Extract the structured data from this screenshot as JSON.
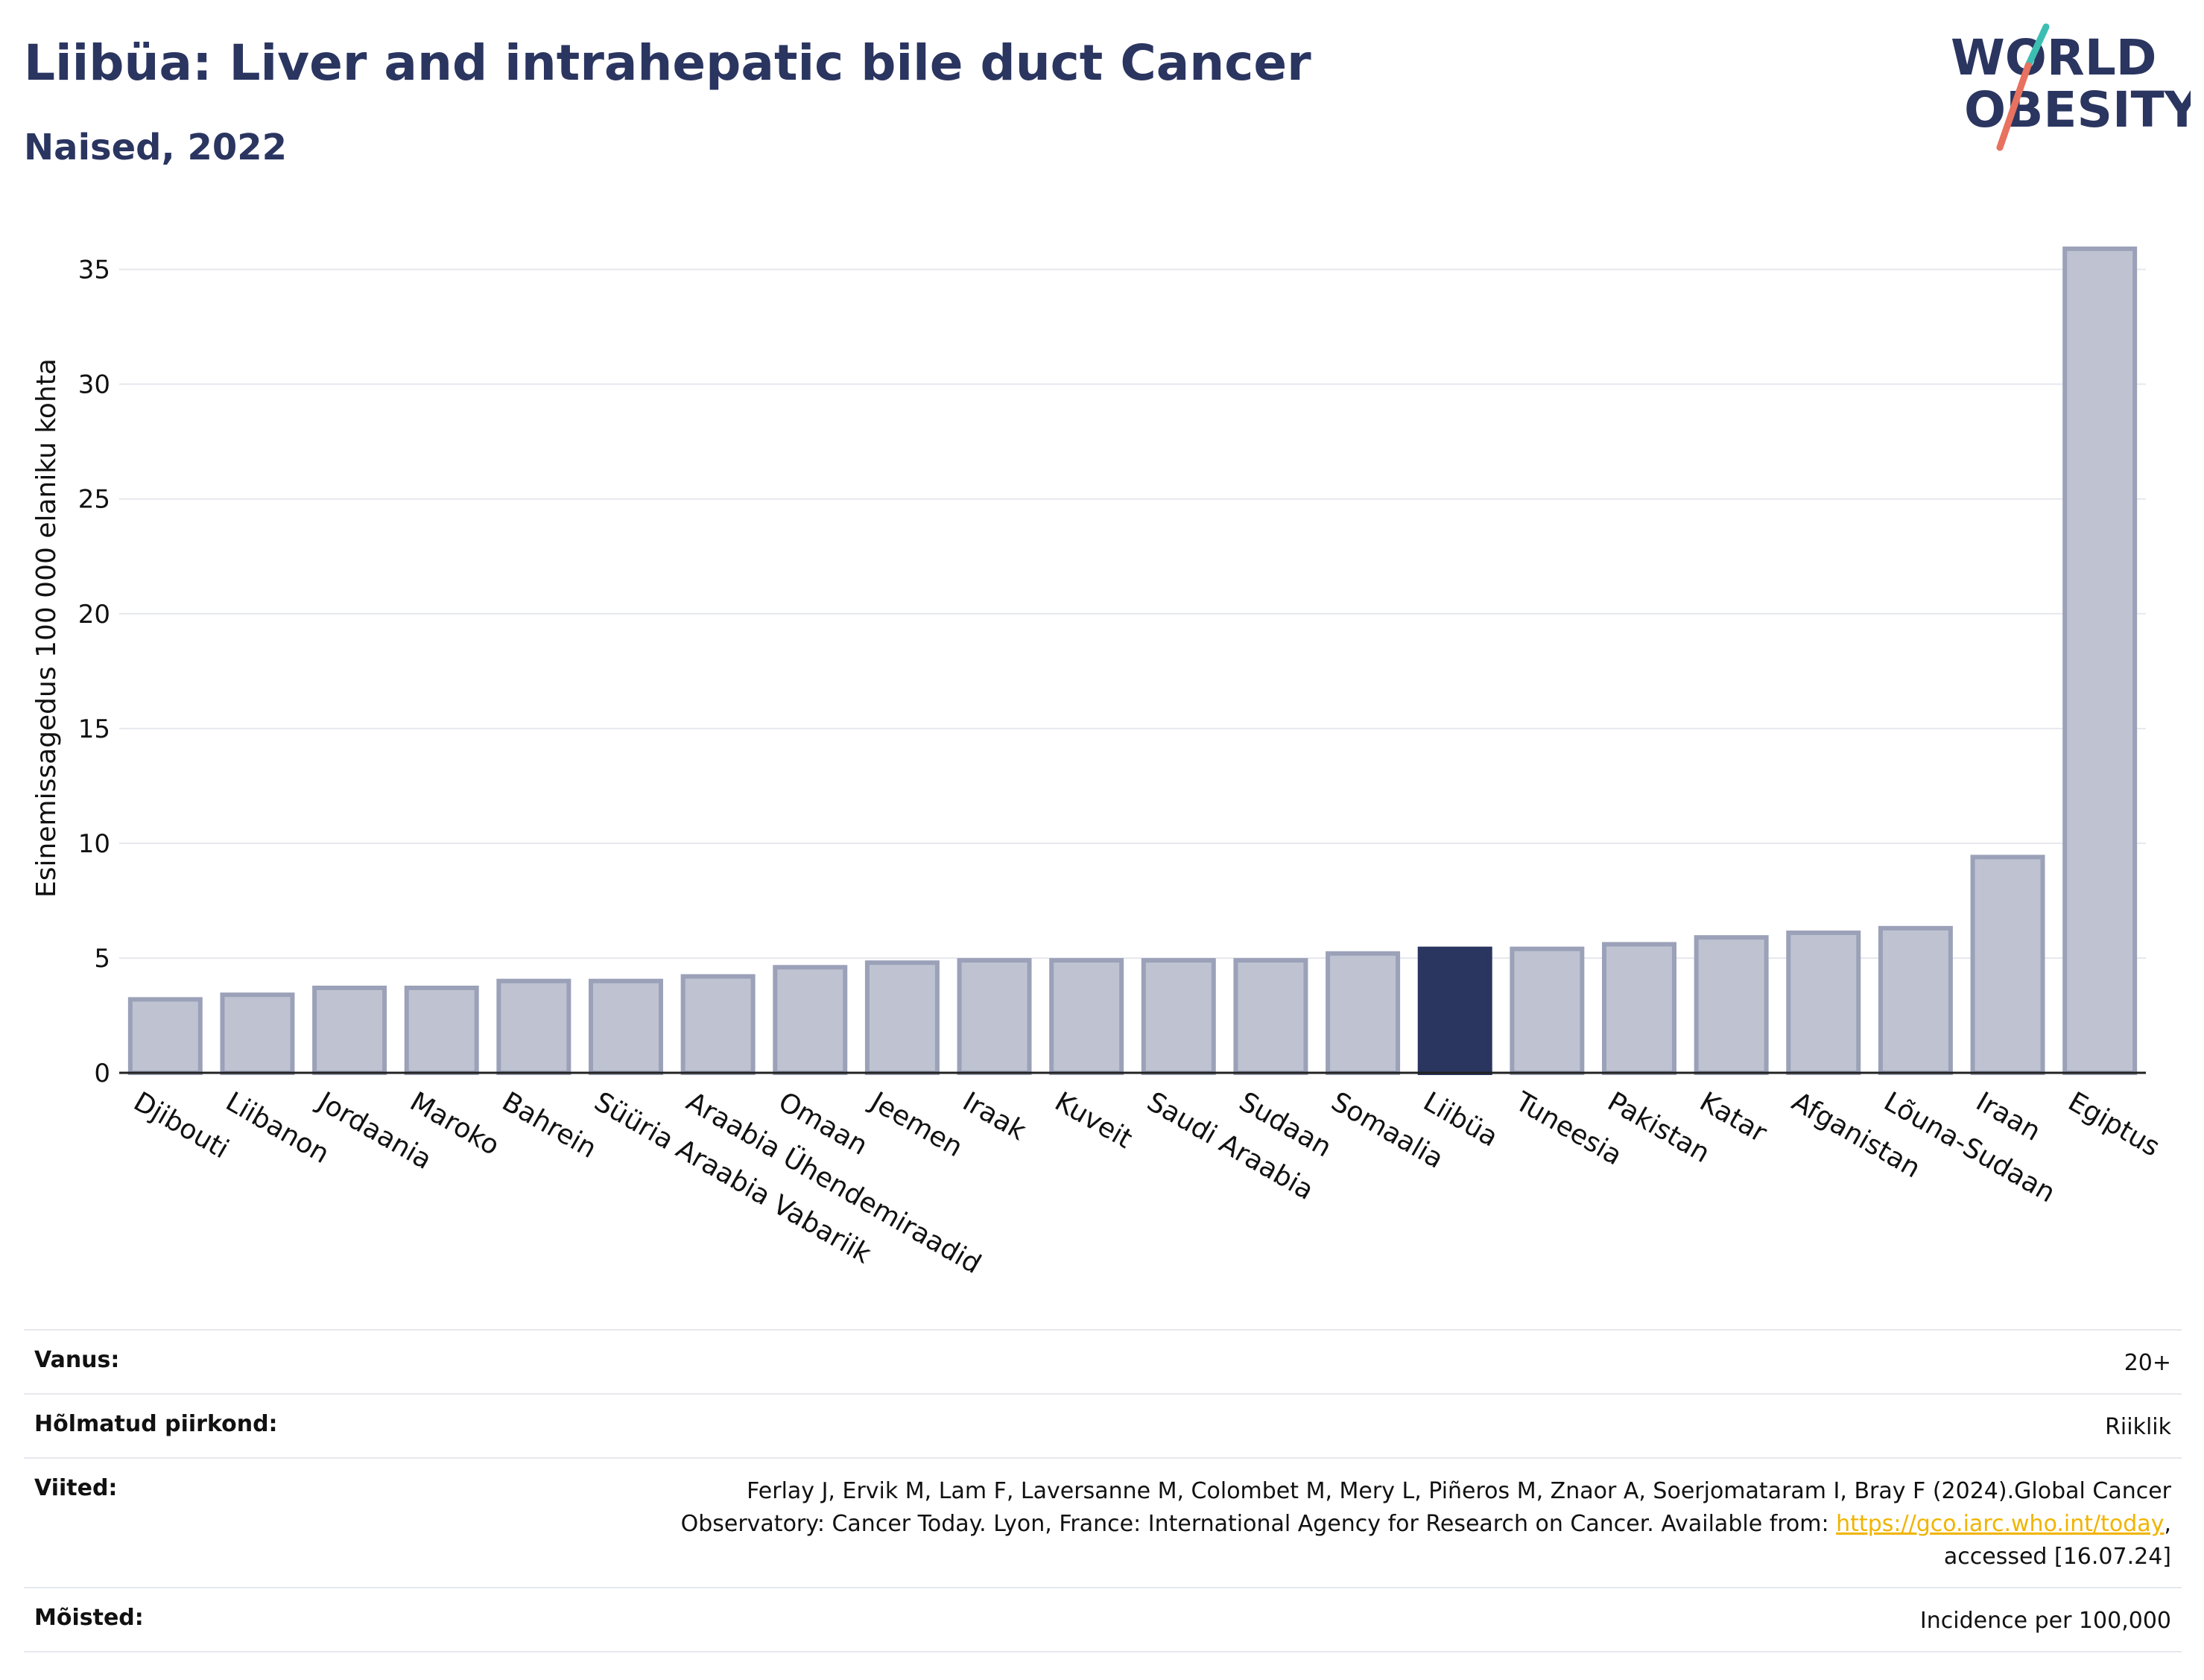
{
  "header": {
    "title": "Liibüa: Liver and intrahepatic bile duct Cancer",
    "subtitle": "Naised, 2022",
    "logo_line1": "WORLD",
    "logo_line2": "OBESITY"
  },
  "chart_data": {
    "type": "bar",
    "ylabel": "Esinemissagedus 100 000 elaniku kohta",
    "ylim": [
      0,
      37
    ],
    "yticks": [
      "0",
      "5",
      "10",
      "15",
      "20",
      "25",
      "30",
      "35"
    ],
    "grid": true,
    "highlight": "Liibüa",
    "colors": {
      "bar": "#bfc3d1",
      "bar_edge": "#9ba1b8",
      "highlight": "#2a3560",
      "grid": "#e6e8ee"
    },
    "categories": [
      "Djibouti",
      "Liibanon",
      "Jordaania",
      "Maroko",
      "Bahrein",
      "Süüria Araabia Vabariik",
      "Araabia Ühendemiraadid",
      "Omaan",
      "Jeemen",
      "Iraak",
      "Kuveit",
      "Saudi Araabia",
      "Sudaan",
      "Somaalia",
      "Liibüa",
      "Tuneesia",
      "Pakistan",
      "Katar",
      "Afganistan",
      "Lõuna-Sudaan",
      "Iraan",
      "Egiptus"
    ],
    "values": [
      3.2,
      3.4,
      3.7,
      3.7,
      4.0,
      4.0,
      4.2,
      4.6,
      4.8,
      4.9,
      4.9,
      4.9,
      4.9,
      5.2,
      5.4,
      5.4,
      5.6,
      5.9,
      6.1,
      6.3,
      9.4,
      35.9
    ]
  },
  "meta": {
    "age_label": "Vanus:",
    "age_value": "20+",
    "region_label": "Hõlmatud piirkond:",
    "region_value": "Riiklik",
    "refs_label": "Viited:",
    "refs_line1": "Ferlay J, Ervik M, Lam F, Laversanne M, Colombet M, Mery L, Piñeros M, Znaor A, Soerjomataram I, Bray F (2024).Global Cancer",
    "refs_line2": "Observatory: Cancer Today. Lyon, France: International Agency for Research on Cancer. Available from: ",
    "refs_link": "https://gco.iarc.who.int/today",
    "refs_line2_end": ",",
    "refs_line3": "accessed [16.07.24]",
    "def_label": "Mõisted:",
    "def_value": "Incidence per 100,000"
  }
}
